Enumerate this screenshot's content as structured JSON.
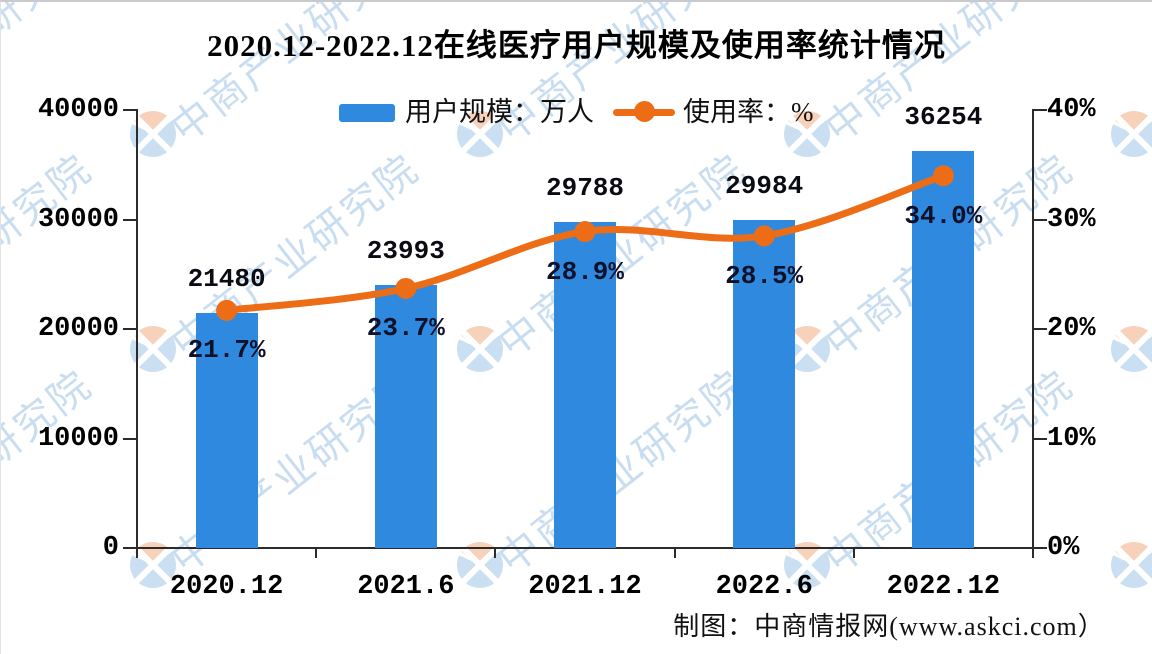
{
  "page": {
    "title": "2020.12-2022.12在线医疗用户规模及使用率统计情况",
    "footer_credit": "制图：中商情报网(www.askci.com）",
    "watermark_text": "中商产业研究院"
  },
  "legend": {
    "bar_label": "用户规模：万人",
    "line_label": "使用率：%"
  },
  "colors": {
    "bar": "#2E89DF",
    "line": "#ED6D17",
    "axis": "#2b2b2b",
    "watermark_blue": "#7fb0dd",
    "watermark_orange": "#f4b690"
  },
  "chart_data": {
    "type": "bar",
    "title": "2020.12-2022.12在线医疗用户规模及使用率统计情况",
    "categories": [
      "2020.12",
      "2021.6",
      "2021.12",
      "2022.6",
      "2022.12"
    ],
    "series": [
      {
        "name": "用户规模：万人",
        "render": "bar",
        "axis": "left",
        "values": [
          21480,
          23993,
          29788,
          29984,
          36254
        ],
        "value_labels": [
          "21480",
          "23993",
          "29788",
          "29984",
          "36254"
        ]
      },
      {
        "name": "使用率：%",
        "render": "line",
        "axis": "right",
        "values": [
          21.7,
          23.7,
          28.9,
          28.5,
          34.0
        ],
        "point_labels": [
          "21.7%",
          "23.7%",
          "28.9%",
          "28.5%",
          "34.0%"
        ]
      }
    ],
    "left_axis": {
      "min": 0,
      "max": 40000,
      "tick_labels": [
        "0",
        "10000",
        "20000",
        "30000",
        "40000"
      ]
    },
    "right_axis": {
      "min": 0,
      "max": 40,
      "tick_labels": [
        "0%",
        "10%",
        "20%",
        "30%",
        "40%"
      ]
    },
    "grid": false,
    "legend_position": "top",
    "xlabel": "",
    "ylabel": ""
  }
}
